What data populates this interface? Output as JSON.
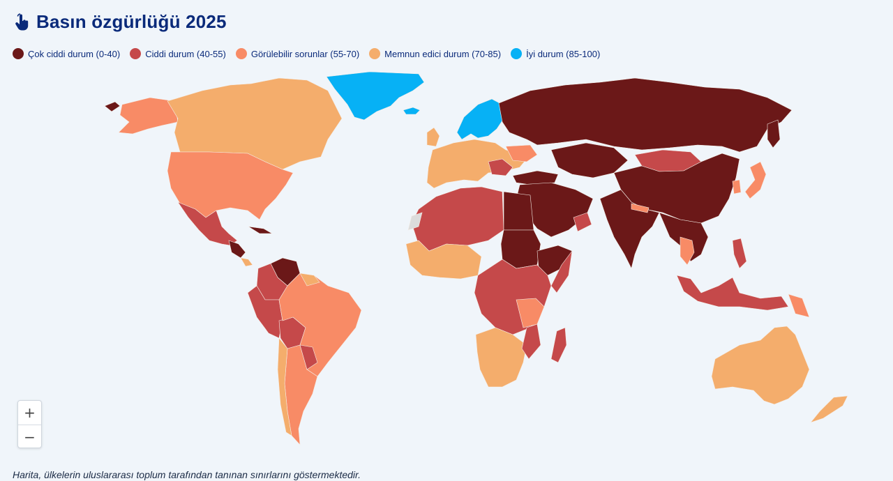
{
  "header": {
    "title": "Basın özgürlüğü 2025",
    "icon": "pointer-hand-icon"
  },
  "legend": [
    {
      "label": "Çok ciddi durum (0-40)",
      "color": "#6b1818"
    },
    {
      "label": "Ciddi durum (40-55)",
      "color": "#c5494a"
    },
    {
      "label": "Görülebilir sorunlar (55-70)",
      "color": "#f88b66"
    },
    {
      "label": "Memnun edici durum (70-85)",
      "color": "#f4ad6c"
    },
    {
      "label": "İyi durum (85-100)",
      "color": "#07b1f5"
    }
  ],
  "zoom": {
    "in_label": "+",
    "out_label": "−"
  },
  "footer": {
    "note": "Harita, ülkelerin uluslararası toplum tarafından tanınan sınırlarını göstermektedir."
  }
}
